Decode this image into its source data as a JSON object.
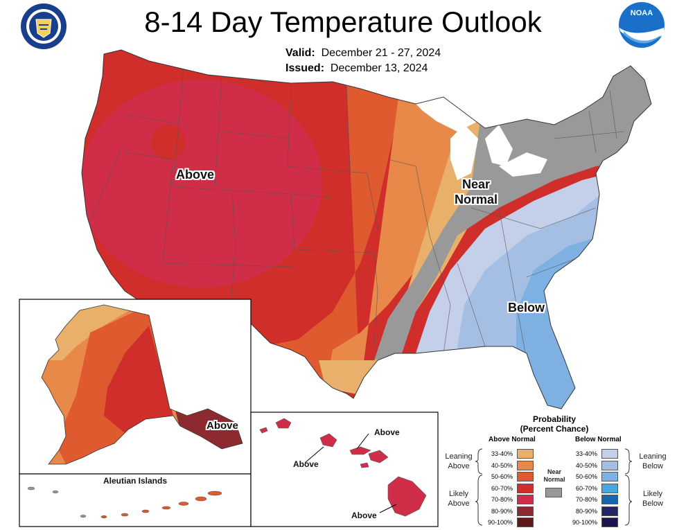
{
  "title": "8-14 Day Temperature Outlook",
  "valid_label": "Valid:",
  "valid_value": "December 21 - 27, 2024",
  "issued_label": "Issued:",
  "issued_value": "December 13, 2024",
  "logos": {
    "left": "department-of-commerce-seal",
    "right": "noaa-logo",
    "noaa_text": "NOAA"
  },
  "map_labels": {
    "above_main": "Above",
    "near_normal_line1": "Near",
    "near_normal_line2": "Normal",
    "below": "Below",
    "alaska_above": "Above",
    "aleutian_title": "Aleutian Islands",
    "hawaii_above_1": "Above",
    "hawaii_above_2": "Above",
    "hawaii_above_3": "Above"
  },
  "legend": {
    "title_line1": "Probability",
    "title_line2": "(Percent Chance)",
    "above_header": "Above Normal",
    "below_header": "Below Normal",
    "near_label_1": "Near",
    "near_label_2": "Normal",
    "leaning_above_1": "Leaning",
    "leaning_above_2": "Above",
    "likely_above_1": "Likely",
    "likely_above_2": "Above",
    "leaning_below_1": "Leaning",
    "leaning_below_2": "Below",
    "likely_below_1": "Likely",
    "likely_below_2": "Below",
    "above_rows": [
      {
        "range": "33-40%",
        "color": "#e8b06a"
      },
      {
        "range": "40-50%",
        "color": "#e8894a"
      },
      {
        "range": "50-60%",
        "color": "#e05a30"
      },
      {
        "range": "60-70%",
        "color": "#cf2e2a"
      },
      {
        "range": "70-80%",
        "color": "#d02e48"
      },
      {
        "range": "80-90%",
        "color": "#8c2a30"
      },
      {
        "range": "90-100%",
        "color": "#5c1a1a"
      }
    ],
    "below_rows": [
      {
        "range": "33-40%",
        "color": "#c4cfea"
      },
      {
        "range": "40-50%",
        "color": "#a4bfe3"
      },
      {
        "range": "50-60%",
        "color": "#7fb0e2"
      },
      {
        "range": "60-70%",
        "color": "#46a6e0"
      },
      {
        "range": "70-80%",
        "color": "#1366b0"
      },
      {
        "range": "80-90%",
        "color": "#232566"
      },
      {
        "range": "90-100%",
        "color": "#1b1450"
      }
    ],
    "near_color": "#999999"
  }
}
